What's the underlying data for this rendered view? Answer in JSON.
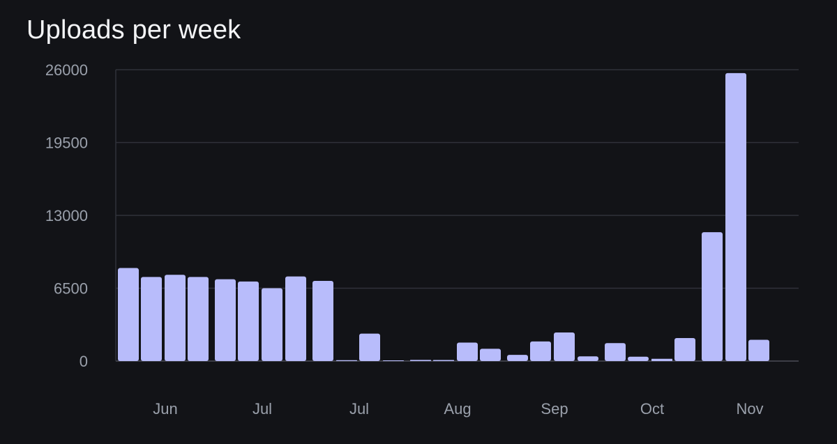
{
  "chart_data": {
    "type": "bar",
    "title": "Uploads per week",
    "xlabel": "",
    "ylabel": "",
    "ylim": [
      0,
      26000
    ],
    "y_ticks": [
      "0",
      "6500",
      "13000",
      "19500",
      "26000"
    ],
    "x_tick_labels": [
      "Jun",
      "Jul",
      "Jul",
      "Aug",
      "Sep",
      "Oct",
      "Nov"
    ],
    "grid": true,
    "bar_color": "#b8bcfb",
    "values": [
      8300,
      7500,
      7700,
      7500,
      7300,
      7100,
      6500,
      7550,
      7150,
      80,
      2450,
      60,
      100,
      90,
      1650,
      1100,
      550,
      1750,
      2550,
      420,
      1600,
      390,
      200,
      2050,
      11500,
      25700,
      1900
    ]
  }
}
